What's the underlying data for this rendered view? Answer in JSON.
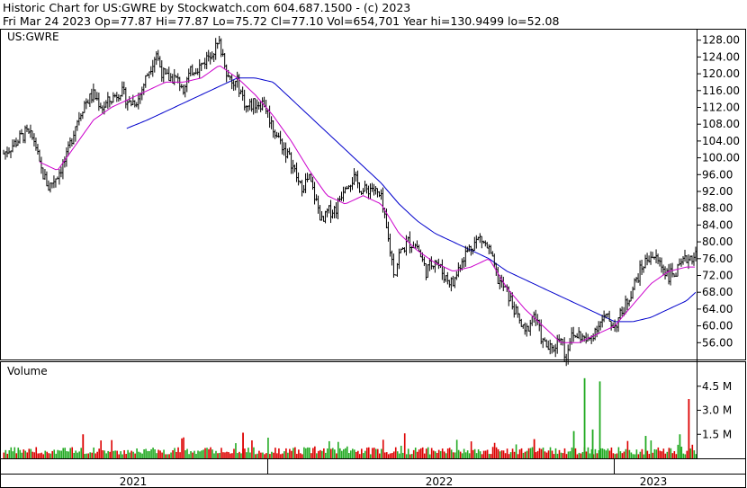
{
  "header": {
    "line1": "Historic Chart for US:GWRE by Stockwatch.com 604.687.1500 - (c) 2023",
    "line2": "Fri Mar 24 2023   Op=77.87   Hi=77.87   Lo=75.72   Cl=77.10   Vol=654,701   Year hi=130.9499   lo=52.08"
  },
  "price_panel": {
    "symbol_label": "US:GWRE"
  },
  "volume_panel": {
    "label": "Volume"
  },
  "colors": {
    "ma_short": "#cc00cc",
    "ma_long": "#0000cc",
    "vol_up": "#22aa22",
    "vol_down": "#dd0000",
    "bars": "#000000"
  },
  "chart_data": {
    "type": "line",
    "description_series": [
      "ohlc",
      "ma_short",
      "ma_long",
      "volume"
    ],
    "price_axis": {
      "ticks": [
        "128.00",
        "124.00",
        "120.00",
        "116.00",
        "112.00",
        "108.00",
        "104.00",
        "100.00",
        "96.00",
        "92.00",
        "88.00",
        "84.00",
        "80.00",
        "76.00",
        "72.00",
        "68.00",
        "64.00",
        "60.00",
        "56.00"
      ],
      "range": [
        52,
        130
      ]
    },
    "volume_axis": {
      "ticks": [
        "4.5 M",
        "3.0 M",
        "1.5 M"
      ],
      "values": [
        4.5,
        3.0,
        1.5
      ],
      "range": [
        0,
        6.0
      ]
    },
    "x_labels": [
      "2021",
      "2022",
      "2023"
    ],
    "price_close_keypoints": [
      [
        0,
        101
      ],
      [
        10,
        103
      ],
      [
        25,
        106
      ],
      [
        35,
        104
      ],
      [
        40,
        98
      ],
      [
        50,
        93
      ],
      [
        60,
        96
      ],
      [
        70,
        100
      ],
      [
        80,
        108
      ],
      [
        90,
        113
      ],
      [
        100,
        115
      ],
      [
        110,
        112
      ],
      [
        120,
        114
      ],
      [
        130,
        116
      ],
      [
        140,
        113
      ],
      [
        150,
        114
      ],
      [
        160,
        120
      ],
      [
        170,
        125
      ],
      [
        175,
        121
      ],
      [
        180,
        119
      ],
      [
        190,
        119
      ],
      [
        200,
        117
      ],
      [
        210,
        121
      ],
      [
        220,
        122
      ],
      [
        230,
        125
      ],
      [
        240,
        127
      ],
      [
        245,
        124
      ],
      [
        250,
        119
      ],
      [
        255,
        117
      ],
      [
        260,
        118
      ],
      [
        265,
        115
      ],
      [
        270,
        112
      ],
      [
        280,
        113
      ],
      [
        290,
        113
      ],
      [
        300,
        107
      ],
      [
        310,
        103
      ],
      [
        320,
        99
      ],
      [
        330,
        93
      ],
      [
        340,
        95
      ],
      [
        350,
        88
      ],
      [
        355,
        84
      ],
      [
        360,
        87
      ],
      [
        370,
        88
      ],
      [
        380,
        94
      ],
      [
        390,
        95
      ],
      [
        400,
        92
      ],
      [
        410,
        93
      ],
      [
        420,
        90
      ],
      [
        430,
        78
      ],
      [
        435,
        72
      ],
      [
        440,
        77
      ],
      [
        450,
        80
      ],
      [
        460,
        79
      ],
      [
        470,
        73
      ],
      [
        480,
        76
      ],
      [
        490,
        72
      ],
      [
        500,
        70
      ],
      [
        510,
        76
      ],
      [
        520,
        79
      ],
      [
        530,
        81
      ],
      [
        540,
        78
      ],
      [
        550,
        71
      ],
      [
        560,
        68
      ],
      [
        570,
        63
      ],
      [
        580,
        58
      ],
      [
        590,
        63
      ],
      [
        600,
        56
      ],
      [
        610,
        54
      ],
      [
        620,
        58
      ],
      [
        625,
        52
      ],
      [
        630,
        57
      ],
      [
        640,
        58
      ],
      [
        650,
        56
      ],
      [
        660,
        60
      ],
      [
        670,
        62
      ],
      [
        680,
        60
      ],
      [
        690,
        64
      ],
      [
        700,
        69
      ],
      [
        710,
        74
      ],
      [
        720,
        77
      ],
      [
        730,
        75
      ],
      [
        740,
        72
      ],
      [
        750,
        73
      ],
      [
        760,
        76
      ],
      [
        770,
        77
      ]
    ],
    "ma_short_keypoints": [
      [
        40,
        99
      ],
      [
        60,
        97
      ],
      [
        80,
        103
      ],
      [
        100,
        109
      ],
      [
        120,
        112
      ],
      [
        140,
        114
      ],
      [
        160,
        116
      ],
      [
        180,
        118
      ],
      [
        200,
        118
      ],
      [
        220,
        119
      ],
      [
        240,
        122
      ],
      [
        260,
        119
      ],
      [
        280,
        115
      ],
      [
        300,
        110
      ],
      [
        320,
        104
      ],
      [
        340,
        97
      ],
      [
        360,
        91
      ],
      [
        380,
        89
      ],
      [
        400,
        91
      ],
      [
        420,
        89
      ],
      [
        440,
        82
      ],
      [
        460,
        78
      ],
      [
        480,
        75
      ],
      [
        500,
        73
      ],
      [
        520,
        74
      ],
      [
        540,
        76
      ],
      [
        560,
        69
      ],
      [
        580,
        64
      ],
      [
        600,
        60
      ],
      [
        620,
        56
      ],
      [
        640,
        56
      ],
      [
        660,
        58
      ],
      [
        680,
        60
      ],
      [
        700,
        65
      ],
      [
        720,
        70
      ],
      [
        740,
        73
      ],
      [
        760,
        74
      ],
      [
        770,
        74
      ]
    ],
    "ma_long_keypoints": [
      [
        137,
        107
      ],
      [
        160,
        109
      ],
      [
        180,
        111
      ],
      [
        200,
        113
      ],
      [
        220,
        115
      ],
      [
        240,
        117
      ],
      [
        260,
        119
      ],
      [
        280,
        119
      ],
      [
        300,
        118
      ],
      [
        320,
        114
      ],
      [
        340,
        110
      ],
      [
        360,
        106
      ],
      [
        380,
        102
      ],
      [
        400,
        98
      ],
      [
        420,
        94
      ],
      [
        440,
        89
      ],
      [
        460,
        85
      ],
      [
        480,
        82
      ],
      [
        500,
        80
      ],
      [
        520,
        78
      ],
      [
        540,
        76
      ],
      [
        560,
        73
      ],
      [
        580,
        71
      ],
      [
        600,
        69
      ],
      [
        620,
        67
      ],
      [
        640,
        65
      ],
      [
        660,
        63
      ],
      [
        680,
        61
      ],
      [
        700,
        61
      ],
      [
        720,
        62
      ],
      [
        740,
        64
      ],
      [
        760,
        66
      ],
      [
        770,
        68
      ]
    ]
  }
}
